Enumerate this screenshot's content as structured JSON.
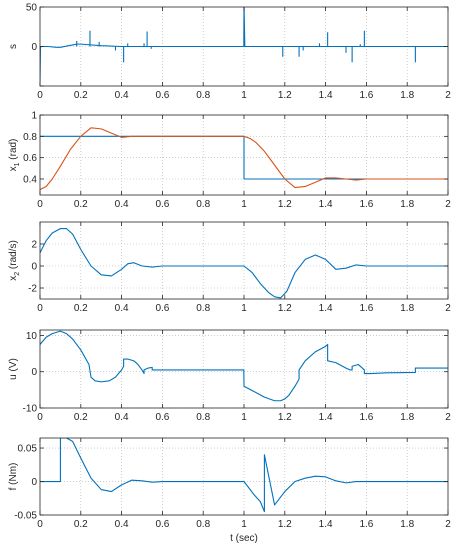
{
  "chart_data": [
    {
      "type": "line",
      "ylabel": "s",
      "xlim": [
        0,
        2
      ],
      "ylim": [
        -50,
        50
      ],
      "xticks": [
        "0",
        "0.2",
        "0.4",
        "0.6",
        "0.8",
        "1",
        "1.2",
        "1.4",
        "1.6",
        "1.8",
        "2"
      ],
      "yticks": [
        {
          "v": -50,
          "label": ""
        },
        {
          "v": 0,
          "label": "0"
        },
        {
          "v": 50,
          "label": "50"
        }
      ],
      "grid": true,
      "series": [
        {
          "color": "#0072BD",
          "x": [
            0,
            0.002,
            0.004,
            0.01,
            0.04,
            0.08,
            0.1,
            0.14,
            0.16,
            0.18,
            0.2,
            0.3,
            0.4,
            0.5,
            0.58,
            0.7,
            0.8,
            0.9,
            0.999,
            1.0,
            1.004,
            1.05,
            1.2,
            1.3,
            1.4,
            1.5,
            1.6,
            1.7,
            1.8,
            1.9,
            2.0
          ],
          "y": [
            -45,
            -2,
            0,
            0,
            0,
            -1,
            -1,
            1,
            2,
            3,
            3,
            1,
            0,
            0,
            0,
            0,
            0,
            0,
            0,
            55,
            0,
            0,
            0,
            0,
            0,
            0,
            0,
            0,
            0,
            0,
            0
          ]
        },
        {
          "color": "#0072BD",
          "x": [
            0.18,
            0.18
          ],
          "y": [
            0,
            7
          ]
        },
        {
          "color": "#0072BD",
          "x": [
            0.245,
            0.245
          ],
          "y": [
            0,
            20
          ]
        },
        {
          "color": "#0072BD",
          "x": [
            0.29,
            0.29
          ],
          "y": [
            0,
            6
          ]
        },
        {
          "color": "#0072BD",
          "x": [
            0.37,
            0.37
          ],
          "y": [
            0,
            -5
          ]
        },
        {
          "color": "#0072BD",
          "x": [
            0.41,
            0.41
          ],
          "y": [
            0,
            -20
          ]
        },
        {
          "color": "#0072BD",
          "x": [
            0.43,
            0.43
          ],
          "y": [
            0,
            4
          ]
        },
        {
          "color": "#0072BD",
          "x": [
            0.51,
            0.51
          ],
          "y": [
            0,
            4
          ]
        },
        {
          "color": "#0072BD",
          "x": [
            0.525,
            0.525
          ],
          "y": [
            0,
            19
          ]
        },
        {
          "color": "#0072BD",
          "x": [
            0.545,
            0.545
          ],
          "y": [
            0,
            -3
          ]
        },
        {
          "color": "#0072BD",
          "x": [
            1.19,
            1.19
          ],
          "y": [
            0,
            -13
          ]
        },
        {
          "color": "#0072BD",
          "x": [
            1.27,
            1.27
          ],
          "y": [
            0,
            -13
          ]
        },
        {
          "color": "#0072BD",
          "x": [
            1.29,
            1.29
          ],
          "y": [
            0,
            -5
          ]
        },
        {
          "color": "#0072BD",
          "x": [
            1.37,
            1.37
          ],
          "y": [
            0,
            4
          ]
        },
        {
          "color": "#0072BD",
          "x": [
            1.41,
            1.41
          ],
          "y": [
            0,
            18
          ]
        },
        {
          "color": "#0072BD",
          "x": [
            1.5,
            1.5
          ],
          "y": [
            0,
            -8
          ]
        },
        {
          "color": "#0072BD",
          "x": [
            1.53,
            1.53
          ],
          "y": [
            0,
            -20
          ]
        },
        {
          "color": "#0072BD",
          "x": [
            1.57,
            1.57
          ],
          "y": [
            0,
            3
          ]
        },
        {
          "color": "#0072BD",
          "x": [
            1.59,
            1.59
          ],
          "y": [
            0,
            20
          ]
        },
        {
          "color": "#0072BD",
          "x": [
            1.84,
            1.84
          ],
          "y": [
            0,
            -20
          ]
        }
      ]
    },
    {
      "type": "line",
      "ylabel": "x",
      "ylabel_sub": "1",
      "ylabel_rest": " (rad)",
      "xlim": [
        0,
        2
      ],
      "ylim": [
        0.25,
        1.0
      ],
      "xticks": [
        "0",
        "0.2",
        "0.4",
        "0.6",
        "0.8",
        "1",
        "1.2",
        "1.4",
        "1.6",
        "1.8",
        "2"
      ],
      "yticks": [
        {
          "v": 0.4,
          "label": "0.4"
        },
        {
          "v": 0.6,
          "label": "0.6"
        },
        {
          "v": 0.8,
          "label": "0.8"
        },
        {
          "v": 1.0,
          "label": "1"
        }
      ],
      "grid": true,
      "series": [
        {
          "color": "#0072BD",
          "x": [
            0,
            1.0,
            1.0,
            2.0
          ],
          "y": [
            0.8,
            0.8,
            0.4,
            0.4
          ]
        },
        {
          "color": "#D95319",
          "x": [
            0,
            0.03,
            0.06,
            0.1,
            0.15,
            0.2,
            0.25,
            0.3,
            0.35,
            0.4,
            0.45,
            0.5,
            0.55,
            0.6,
            0.8,
            1.0,
            1.03,
            1.06,
            1.1,
            1.15,
            1.2,
            1.25,
            1.3,
            1.35,
            1.4,
            1.45,
            1.5,
            1.55,
            1.6,
            2.0
          ],
          "y": [
            0.3,
            0.33,
            0.4,
            0.52,
            0.68,
            0.8,
            0.88,
            0.87,
            0.83,
            0.79,
            0.8,
            0.8,
            0.8,
            0.8,
            0.8,
            0.8,
            0.78,
            0.74,
            0.66,
            0.53,
            0.4,
            0.32,
            0.33,
            0.37,
            0.41,
            0.41,
            0.4,
            0.39,
            0.4,
            0.4
          ]
        }
      ]
    },
    {
      "type": "line",
      "ylabel": "x",
      "ylabel_sub": "2",
      "ylabel_rest": " (rad/s)",
      "xlim": [
        0,
        2
      ],
      "ylim": [
        -3,
        4
      ],
      "xticks": [
        "0",
        "0.2",
        "0.4",
        "0.6",
        "0.8",
        "1",
        "1.2",
        "1.4",
        "1.6",
        "1.8",
        "2"
      ],
      "yticks": [
        {
          "v": -2,
          "label": "-2"
        },
        {
          "v": 0,
          "label": "0"
        },
        {
          "v": 2,
          "label": "2"
        }
      ],
      "grid": true,
      "series": [
        {
          "color": "#0072BD",
          "x": [
            0,
            0.03,
            0.06,
            0.1,
            0.13,
            0.16,
            0.2,
            0.25,
            0.3,
            0.35,
            0.4,
            0.43,
            0.46,
            0.5,
            0.55,
            0.6,
            0.8,
            1.0,
            1.04,
            1.08,
            1.12,
            1.15,
            1.18,
            1.21,
            1.25,
            1.3,
            1.35,
            1.4,
            1.45,
            1.5,
            1.55,
            1.6,
            2.0
          ],
          "y": [
            1.2,
            2.3,
            3.0,
            3.4,
            3.4,
            2.9,
            1.5,
            0,
            -0.8,
            -0.9,
            -0.3,
            0.2,
            0.3,
            0,
            -0.1,
            0,
            0,
            0,
            -0.6,
            -1.6,
            -2.4,
            -2.8,
            -2.9,
            -2.3,
            -0.6,
            0.6,
            1.0,
            0.6,
            -0.3,
            -0.2,
            0.1,
            0,
            0
          ]
        }
      ]
    },
    {
      "type": "line",
      "ylabel": "u (V)",
      "xlim": [
        0,
        2
      ],
      "ylim": [
        -10,
        11.5
      ],
      "xticks": [
        "0",
        "0.2",
        "0.4",
        "0.6",
        "0.8",
        "1",
        "1.2",
        "1.4",
        "1.6",
        "1.8",
        "2"
      ],
      "yticks": [
        {
          "v": -10,
          "label": "-10"
        },
        {
          "v": 0,
          "label": "0"
        },
        {
          "v": 10,
          "label": "10"
        }
      ],
      "grid": true,
      "series": [
        {
          "color": "#0072BD",
          "x": [
            0,
            0.03,
            0.06,
            0.1,
            0.13,
            0.16,
            0.2,
            0.24,
            0.25,
            0.27,
            0.3,
            0.34,
            0.37,
            0.4,
            0.41,
            0.41,
            0.43,
            0.46,
            0.48,
            0.5,
            0.51,
            0.51,
            0.53,
            0.55,
            0.55,
            0.6,
            0.8,
            0.999,
            1.0,
            1.05,
            1.1,
            1.15,
            1.18,
            1.2,
            1.22,
            1.25,
            1.27,
            1.27,
            1.3,
            1.35,
            1.4,
            1.41,
            1.41,
            1.45,
            1.5,
            1.52,
            1.53,
            1.53,
            1.56,
            1.58,
            1.59,
            1.59,
            1.62,
            1.7,
            1.84,
            1.84,
            2.0
          ],
          "y": [
            7.5,
            9.5,
            10.5,
            11.2,
            10.5,
            9,
            6,
            2,
            -1.5,
            -2.5,
            -2.8,
            -2.5,
            -1.5,
            0.5,
            1.5,
            3.5,
            3.5,
            3,
            2,
            0.5,
            -0.5,
            0.5,
            1,
            1.2,
            0.5,
            0.5,
            0.5,
            0.5,
            -4,
            -5.5,
            -7,
            -8,
            -8,
            -7.5,
            -6.5,
            -4,
            -2,
            0.5,
            3,
            5.5,
            7,
            7.5,
            3,
            2.5,
            1,
            0.5,
            0.5,
            1.5,
            2,
            1,
            0.5,
            -0.5,
            -0.5,
            -0.3,
            -0.2,
            1,
            1
          ]
        }
      ]
    },
    {
      "type": "line",
      "ylabel": "f (Nm)",
      "xlabel": "t (sec)",
      "xlim": [
        0,
        2
      ],
      "ylim": [
        -0.05,
        0.065
      ],
      "xticks": [
        "0",
        "0.2",
        "0.4",
        "0.6",
        "0.8",
        "1",
        "1.2",
        "1.4",
        "1.6",
        "1.8",
        "2"
      ],
      "yticks": [
        {
          "v": -0.05,
          "label": "-0.05"
        },
        {
          "v": 0,
          "label": "0"
        },
        {
          "v": 0.05,
          "label": "0.05"
        }
      ],
      "grid": true,
      "series": [
        {
          "color": "#0072BD",
          "x": [
            0,
            0.1,
            0.1,
            0.13,
            0.16,
            0.2,
            0.25,
            0.3,
            0.35,
            0.4,
            0.45,
            0.5,
            0.55,
            0.6,
            0.8,
            1.0,
            1.05,
            1.08,
            1.1,
            1.1,
            1.15,
            1.2,
            1.25,
            1.3,
            1.35,
            1.4,
            1.45,
            1.5,
            1.55,
            1.6,
            2.0
          ],
          "y": [
            0,
            0,
            0.065,
            0.065,
            0.06,
            0.035,
            0.005,
            -0.012,
            -0.015,
            -0.005,
            0.002,
            0.001,
            -0.001,
            0,
            0,
            0,
            -0.02,
            -0.03,
            -0.045,
            0.04,
            -0.035,
            -0.015,
            0,
            0.005,
            0.008,
            0.007,
            0.001,
            -0.002,
            0,
            0,
            0
          ]
        }
      ]
    }
  ]
}
